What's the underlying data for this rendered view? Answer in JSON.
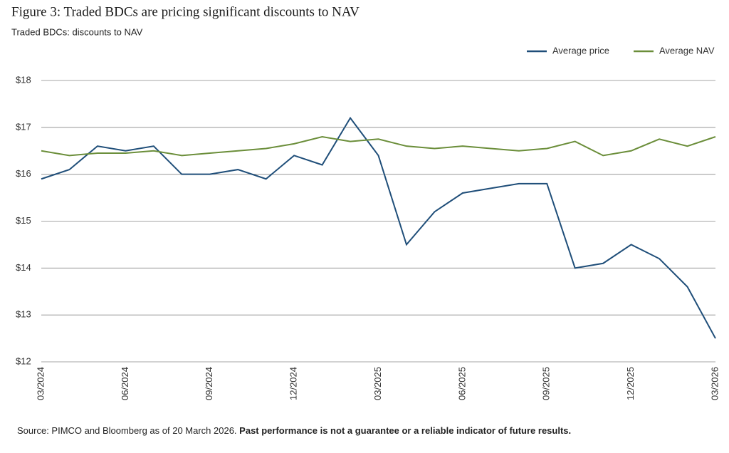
{
  "chart_data": {
    "type": "line",
    "title": "Figure 3: Traded BDCs are pricing significant discounts to NAV",
    "subtitle": "Traded BDCs: discounts to NAV",
    "source": "Source: PIMCO and Bloomberg as of 20 March 2026.",
    "source_note": "Past performance is not a guarantee or a reliable indicator of future results.",
    "categories": [
      "03/2024",
      null,
      null,
      "06/2024",
      null,
      null,
      "09/2024",
      null,
      null,
      "12/2024",
      null,
      null,
      "03/2025",
      null,
      null,
      "06/2025",
      null,
      null,
      "09/2025",
      null,
      null,
      "12/2025",
      null,
      null,
      "03/2026"
    ],
    "series": [
      {
        "name": "Average price",
        "color": "#1f4e79",
        "values": [
          15.9,
          16.1,
          16.6,
          16.5,
          16.6,
          16.0,
          16.0,
          16.1,
          15.9,
          16.4,
          16.2,
          17.2,
          16.4,
          14.5,
          15.2,
          15.6,
          15.7,
          15.8,
          15.8,
          14.0,
          14.1,
          14.5,
          14.2,
          13.6,
          12.5
        ]
      },
      {
        "name": "Average NAV",
        "color": "#6b8e3a",
        "values": [
          16.5,
          16.4,
          16.45,
          16.45,
          16.5,
          16.4,
          16.45,
          16.5,
          16.55,
          16.65,
          16.8,
          16.7,
          16.75,
          16.6,
          16.55,
          16.6,
          16.55,
          16.5,
          16.55,
          16.7,
          16.4,
          16.5,
          16.75,
          16.6,
          16.8
        ]
      }
    ],
    "ylim": [
      12,
      18
    ],
    "yticks": [
      {
        "value": 12,
        "label": "$12"
      },
      {
        "value": 13,
        "label": "$13"
      },
      {
        "value": 14,
        "label": "$14"
      },
      {
        "value": 15,
        "label": "$15"
      },
      {
        "value": 16,
        "label": "$16"
      },
      {
        "value": 17,
        "label": "$17"
      },
      {
        "value": 18,
        "label": "$18"
      }
    ],
    "grid": true,
    "legend": "top-right"
  }
}
